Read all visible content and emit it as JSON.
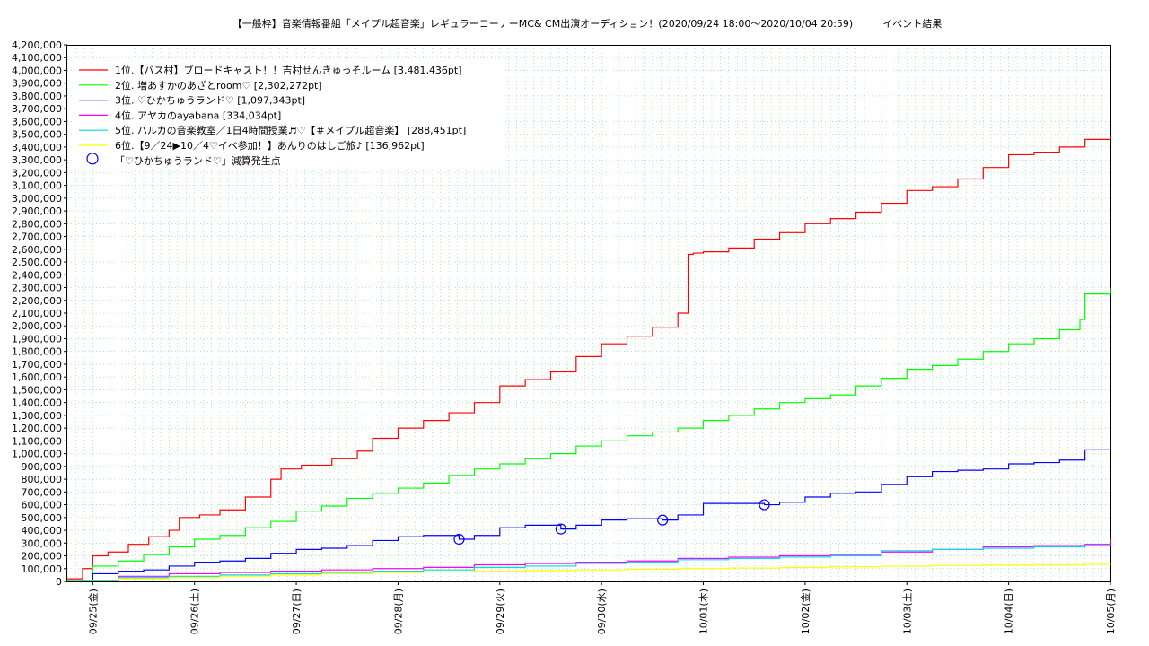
{
  "chart_data": {
    "type": "line",
    "title": "【一般枠】音楽情報番組「メイプル超音楽」レギュラーコーナーMC& CM出演オーディション！(2020/09/24 18:00～2020/10/04 20:59)　　　イベント結果",
    "xlabel": "",
    "ylabel": "",
    "x_unit": "days since 2020-09-24 18:00",
    "xlim": [
      0,
      10.25
    ],
    "ylim": [
      0,
      4200000
    ],
    "y_ticks": [
      0,
      100000,
      200000,
      300000,
      400000,
      500000,
      600000,
      700000,
      800000,
      900000,
      1000000,
      1100000,
      1200000,
      1300000,
      1400000,
      1500000,
      1600000,
      1700000,
      1800000,
      1900000,
      2000000,
      2100000,
      2200000,
      2300000,
      2400000,
      2500000,
      2600000,
      2700000,
      2800000,
      2900000,
      3000000,
      3100000,
      3200000,
      3300000,
      3400000,
      3500000,
      3600000,
      3700000,
      3800000,
      3900000,
      4000000,
      4100000,
      4200000
    ],
    "y_tick_labels": [
      "0",
      "100,000",
      "200,000",
      "300,000",
      "400,000",
      "500,000",
      "600,000",
      "700,000",
      "800,000",
      "900,000",
      "1,000,000",
      "1,100,000",
      "1,200,000",
      "1,300,000",
      "1,400,000",
      "1,500,000",
      "1,600,000",
      "1,700,000",
      "1,800,000",
      "1,900,000",
      "2,000,000",
      "2,100,000",
      "2,200,000",
      "2,300,000",
      "2,400,000",
      "2,500,000",
      "2,600,000",
      "2,700,000",
      "2,800,000",
      "2,900,000",
      "3,000,000",
      "3,100,000",
      "3,200,000",
      "3,300,000",
      "3,400,000",
      "3,500,000",
      "3,600,000",
      "3,700,000",
      "3,800,000",
      "3,900,000",
      "4,000,000",
      "4,100,000",
      "4,200,000"
    ],
    "x_ticks": [
      0.25,
      1.25,
      2.25,
      3.25,
      4.25,
      5.25,
      6.25,
      7.25,
      8.25,
      9.25,
      10.25
    ],
    "x_tick_labels": [
      "09/25(金)",
      "09/26(土)",
      "09/27(日)",
      "09/28(月)",
      "09/29(火)",
      "09/30(水)",
      "10/01(木)",
      "10/02(金)",
      "10/03(土)",
      "10/04(日)",
      "10/05(月)"
    ],
    "grid": true,
    "legend_position": "top-left",
    "series": [
      {
        "name": "1位.【バス村】ブロードキャスト！！吉村せんきゅっそルーム [3,481,436pt]",
        "color": "#ff0000",
        "x": [
          0,
          0.15,
          0.25,
          0.4,
          0.6,
          0.8,
          1.0,
          1.1,
          1.3,
          1.5,
          1.75,
          2.0,
          2.1,
          2.3,
          2.6,
          2.85,
          3.0,
          3.25,
          3.5,
          3.75,
          4.0,
          4.25,
          4.5,
          4.75,
          5.0,
          5.25,
          5.5,
          5.75,
          6.0,
          6.1,
          6.15,
          6.25,
          6.5,
          6.75,
          7.0,
          7.25,
          7.5,
          7.75,
          8.0,
          8.25,
          8.5,
          8.75,
          9.0,
          9.25,
          9.5,
          9.75,
          10.0,
          10.25
        ],
        "y": [
          20000,
          100000,
          200000,
          230000,
          290000,
          350000,
          400000,
          500000,
          520000,
          560000,
          660000,
          800000,
          880000,
          910000,
          960000,
          1020000,
          1120000,
          1200000,
          1260000,
          1320000,
          1400000,
          1530000,
          1580000,
          1640000,
          1760000,
          1860000,
          1920000,
          1990000,
          2100000,
          2560000,
          2570000,
          2580000,
          2610000,
          2680000,
          2730000,
          2800000,
          2840000,
          2890000,
          2960000,
          3060000,
          3090000,
          3150000,
          3240000,
          3340000,
          3360000,
          3400000,
          3460000,
          3490000
        ]
      },
      {
        "name": "2位. 増あすかのあざとroom♡ [2,302,272pt]",
        "color": "#00ff00",
        "x": [
          0,
          0.25,
          0.5,
          0.75,
          1.0,
          1.25,
          1.5,
          1.75,
          2.0,
          2.25,
          2.5,
          2.75,
          3.0,
          3.25,
          3.5,
          3.75,
          4.0,
          4.25,
          4.5,
          4.75,
          5.0,
          5.25,
          5.5,
          5.75,
          6.0,
          6.25,
          6.5,
          6.75,
          7.0,
          7.25,
          7.5,
          7.75,
          8.0,
          8.25,
          8.5,
          8.75,
          9.0,
          9.25,
          9.5,
          9.75,
          9.95,
          10.0,
          10.25
        ],
        "y": [
          10000,
          120000,
          160000,
          210000,
          270000,
          330000,
          360000,
          420000,
          470000,
          550000,
          590000,
          650000,
          690000,
          730000,
          770000,
          830000,
          880000,
          920000,
          960000,
          1000000,
          1060000,
          1100000,
          1140000,
          1170000,
          1200000,
          1260000,
          1300000,
          1350000,
          1400000,
          1430000,
          1460000,
          1530000,
          1590000,
          1660000,
          1690000,
          1740000,
          1800000,
          1860000,
          1900000,
          1970000,
          2050000,
          2250000,
          2300000
        ]
      },
      {
        "name": "3位. ♡ひかちゅうランド♡ [1,097,343pt]",
        "color": "#0000ff",
        "x": [
          0,
          0.25,
          0.5,
          0.75,
          1.0,
          1.25,
          1.5,
          1.75,
          2.0,
          2.25,
          2.5,
          2.75,
          3.0,
          3.25,
          3.5,
          3.75,
          3.85,
          4.0,
          4.25,
          4.5,
          4.75,
          4.85,
          5.0,
          5.25,
          5.5,
          5.75,
          5.85,
          6.0,
          6.25,
          6.5,
          6.75,
          6.85,
          7.0,
          7.25,
          7.5,
          7.75,
          8.0,
          8.25,
          8.5,
          8.75,
          9.0,
          9.25,
          9.5,
          9.75,
          10.0,
          10.25
        ],
        "y": [
          10000,
          60000,
          80000,
          90000,
          120000,
          150000,
          160000,
          180000,
          220000,
          250000,
          260000,
          280000,
          320000,
          350000,
          360000,
          360000,
          330000,
          360000,
          420000,
          440000,
          440000,
          410000,
          440000,
          480000,
          490000,
          490000,
          480000,
          520000,
          610000,
          610000,
          610000,
          600000,
          620000,
          660000,
          690000,
          700000,
          760000,
          820000,
          860000,
          870000,
          880000,
          920000,
          930000,
          950000,
          1030000,
          1097343
        ]
      },
      {
        "name": "4位. アヤカのayabana [334,034pt]",
        "color": "#ff00ff",
        "x": [
          0,
          0.5,
          1.0,
          1.5,
          2.0,
          2.5,
          3.0,
          3.5,
          4.0,
          4.5,
          5.0,
          5.5,
          6.0,
          6.5,
          7.0,
          7.5,
          8.0,
          8.5,
          9.0,
          9.5,
          10.0,
          10.25
        ],
        "y": [
          10000,
          40000,
          60000,
          70000,
          80000,
          90000,
          100000,
          110000,
          130000,
          140000,
          150000,
          160000,
          180000,
          190000,
          200000,
          210000,
          230000,
          250000,
          270000,
          280000,
          290000,
          334034
        ]
      },
      {
        "name": "5位. ハルカの音楽教室／1日4時間授業♬♡【＃メイプル超音楽】 [288,451pt]",
        "color": "#00dddd",
        "x": [
          0,
          0.5,
          1.0,
          1.5,
          2.0,
          2.5,
          3.0,
          3.5,
          4.0,
          4.5,
          5.0,
          5.5,
          6.0,
          6.5,
          7.0,
          7.5,
          8.0,
          8.5,
          9.0,
          9.5,
          10.0,
          10.25
        ],
        "y": [
          10000,
          30000,
          40000,
          50000,
          60000,
          70000,
          80000,
          90000,
          110000,
          120000,
          140000,
          150000,
          170000,
          180000,
          190000,
          200000,
          240000,
          250000,
          260000,
          270000,
          280000,
          288451
        ]
      },
      {
        "name": "6位.【9／24▶10／4♡イベ参加！】あんりのはしご旅♪ [136,962pt]",
        "color": "#ffff00",
        "x": [
          0,
          0.5,
          1.0,
          1.5,
          2.0,
          2.5,
          3.0,
          3.5,
          4.0,
          4.5,
          5.0,
          5.5,
          6.0,
          6.5,
          7.0,
          7.5,
          8.0,
          8.5,
          9.0,
          9.5,
          10.0,
          10.25
        ],
        "y": [
          5000,
          20000,
          30000,
          40000,
          50000,
          60000,
          70000,
          75000,
          80000,
          85000,
          90000,
          95000,
          100000,
          105000,
          110000,
          115000,
          120000,
          125000,
          128000,
          130000,
          134000,
          136962
        ]
      }
    ],
    "markers": {
      "name": "「♡ひかちゅうランド♡」減算発生点",
      "color": "#0000ff",
      "x": [
        3.85,
        4.85,
        5.85,
        6.85
      ],
      "y": [
        330000,
        410000,
        480000,
        600000
      ]
    }
  }
}
